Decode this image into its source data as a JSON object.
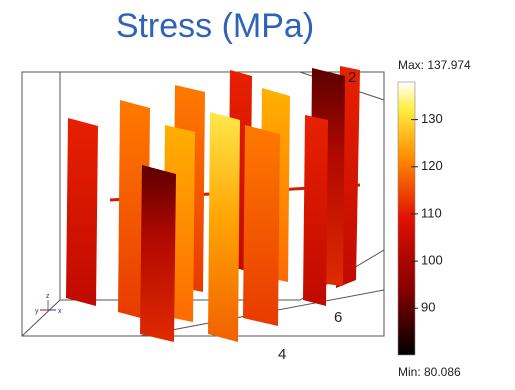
{
  "title": "Stress (MPa)",
  "colorbar": {
    "max": 137.974,
    "max_label": "Max: 137.974",
    "min": 80.086,
    "min_label": "Min: 80.086",
    "ticks": [
      90,
      100,
      110,
      120,
      130
    ]
  },
  "axis_labels": [
    "2",
    "4",
    "6"
  ],
  "triad": [
    "x",
    "y",
    "z"
  ]
}
